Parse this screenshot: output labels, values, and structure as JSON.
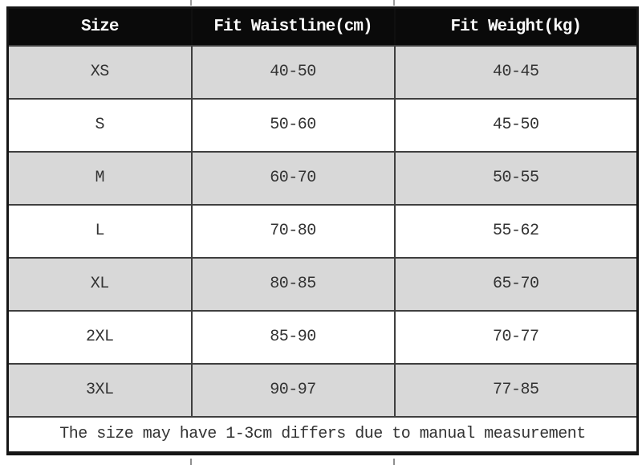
{
  "chart_data": {
    "type": "table",
    "title": "",
    "columns": [
      "Size",
      "Fit Waistline(cm)",
      "Fit Weight(kg)"
    ],
    "rows": [
      [
        "XS",
        "40-50",
        "40-45"
      ],
      [
        "S",
        "50-60",
        "45-50"
      ],
      [
        "M",
        "60-70",
        "50-55"
      ],
      [
        "L",
        "70-80",
        "55-62"
      ],
      [
        "XL",
        "80-85",
        "65-70"
      ],
      [
        "2XL",
        "85-90",
        "70-77"
      ],
      [
        "3XL",
        "90-97",
        "77-85"
      ]
    ],
    "note": "The size may have 1-3cm differs due to manual measurement",
    "layout_hints": {
      "striping": "rows XS, M, XL, 3XL shaded gray; S, L, 2XL white",
      "header_style": "black background, white bold monospace text",
      "note_row": "full-width, centered, white background"
    }
  },
  "colors": {
    "header_bg": "#0a0a0a",
    "header_text": "#fafafa",
    "row_alt_bg": "#d8d8d8",
    "row_bg": "#ffffff",
    "grid_line": "#3f3f3f",
    "outer_border": "#151515",
    "body_text": "#333333"
  }
}
